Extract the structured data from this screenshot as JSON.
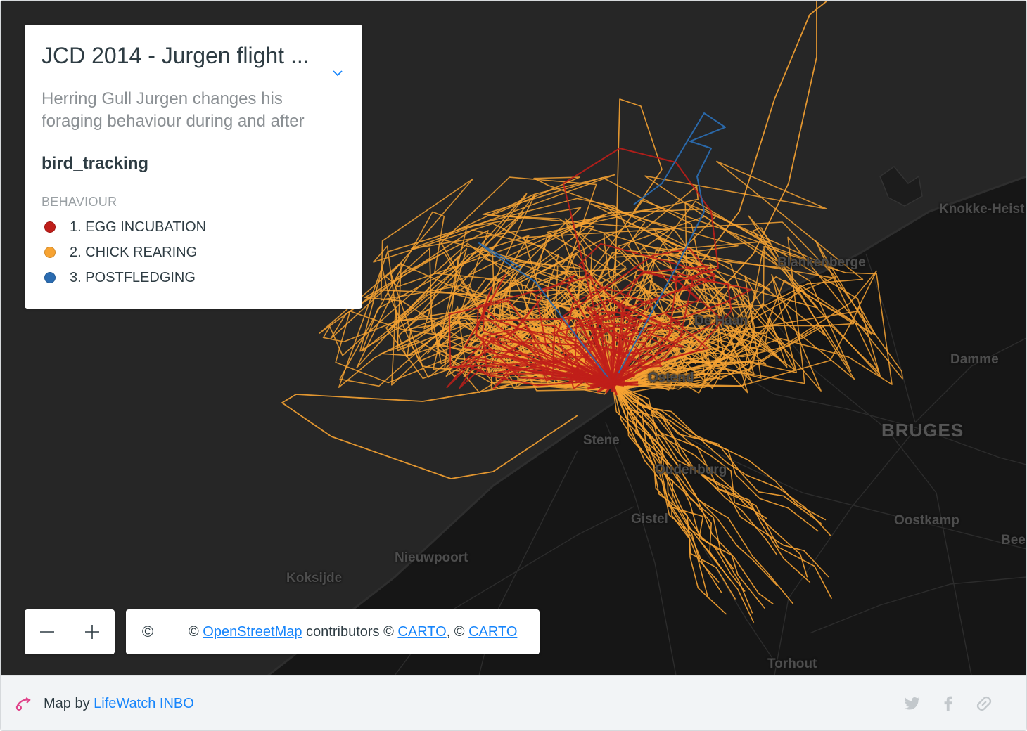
{
  "legend": {
    "title": "JCD 2014 - Jurgen flight ...",
    "description": "Herring Gull Jurgen changes his foraging behaviour during and after",
    "layer_name": "bird_tracking",
    "heading": "BEHAVIOUR",
    "items": [
      {
        "label": "1. EGG INCUBATION",
        "color": "#bf1e1a"
      },
      {
        "label": "2. CHICK REARING",
        "color": "#f7a332"
      },
      {
        "label": "3. POSTFLEDGING",
        "color": "#2a6bb0"
      }
    ]
  },
  "places": [
    {
      "name": "Knokke-Heist"
    },
    {
      "name": "Blankenberge"
    },
    {
      "name": "De Haan"
    },
    {
      "name": "Damme"
    },
    {
      "name": "BRUGES"
    },
    {
      "name": "Stene"
    },
    {
      "name": "Oudenburg"
    },
    {
      "name": "Gistel"
    },
    {
      "name": "Oostkamp"
    },
    {
      "name": "Beernem"
    },
    {
      "name": "Nieuwpoort"
    },
    {
      "name": "Koksijde"
    },
    {
      "name": "Torhout"
    },
    {
      "name": "Ostend"
    }
  ],
  "zoom": {
    "out_label": "−",
    "in_label": "+"
  },
  "attribution": {
    "toggle": "©",
    "prefix": "© ",
    "osm_link": "OpenStreetMap",
    "middle": " contributors © ",
    "carto_link_1": "CARTO",
    "sep": ", © ",
    "carto_link_2": "CARTO"
  },
  "footer": {
    "map_by": "Map by ",
    "author_link": "LifeWatch INBO"
  },
  "colors": {
    "sea": "#262626",
    "land": "#161616",
    "accent_link": "#1785fb"
  },
  "icons": [
    "chevron-down-icon",
    "minus-icon",
    "plus-icon",
    "carto-logo-icon",
    "twitter-icon",
    "facebook-icon",
    "link-icon"
  ]
}
